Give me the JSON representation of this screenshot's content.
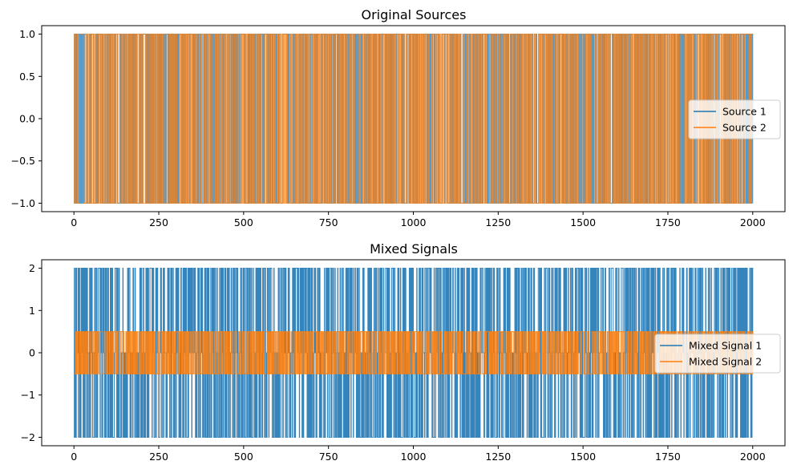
{
  "chart_data": [
    {
      "type": "line",
      "title": "Original Sources",
      "xlabel": "",
      "ylabel": "",
      "xlim": [
        -95,
        2095
      ],
      "ylim": [
        -1.1,
        1.1
      ],
      "x_ticks": [
        0,
        250,
        500,
        750,
        1000,
        1250,
        1500,
        1750,
        2000
      ],
      "x_tick_labels": [
        "0",
        "250",
        "500",
        "750",
        "1000",
        "1250",
        "1500",
        "1750",
        "2000"
      ],
      "y_ticks": [
        1.0,
        0.5,
        0.0,
        -0.5,
        -1.0
      ],
      "y_tick_labels": [
        "1.0",
        "0.5",
        "0.0",
        "−0.5",
        "−1.0"
      ],
      "grid": false,
      "legend_position": "center-right",
      "x_range": [
        0,
        2000
      ],
      "series": [
        {
          "name": "Source 1",
          "color": "#1f77b4",
          "levels": [
            -1,
            1
          ],
          "note_values": "square wave switching between -1 and 1 over 2000 samples"
        },
        {
          "name": "Source 2",
          "color": "#ff7f0e",
          "levels": [
            -1,
            1
          ],
          "note_values": "square wave switching between -1 and 1 over 2000 samples"
        }
      ]
    },
    {
      "type": "line",
      "title": "Mixed Signals",
      "xlabel": "",
      "ylabel": "",
      "xlim": [
        -95,
        2095
      ],
      "ylim": [
        -2.2,
        2.2
      ],
      "x_ticks": [
        0,
        250,
        500,
        750,
        1000,
        1250,
        1500,
        1750,
        2000
      ],
      "x_tick_labels": [
        "0",
        "250",
        "500",
        "750",
        "1000",
        "1250",
        "1500",
        "1750",
        "2000"
      ],
      "y_ticks": [
        2,
        1,
        0,
        -1,
        -2
      ],
      "y_tick_labels": [
        "2",
        "1",
        "0",
        "−1",
        "−2"
      ],
      "grid": false,
      "legend_position": "center-right",
      "x_range": [
        0,
        2000
      ],
      "series": [
        {
          "name": "Mixed Signal 1",
          "color": "#1f77b4",
          "levels": [
            -2,
            0,
            2
          ]
        },
        {
          "name": "Mixed Signal 2",
          "color": "#ff7f0e",
          "levels": [
            -0.5,
            0.5
          ]
        }
      ]
    }
  ]
}
